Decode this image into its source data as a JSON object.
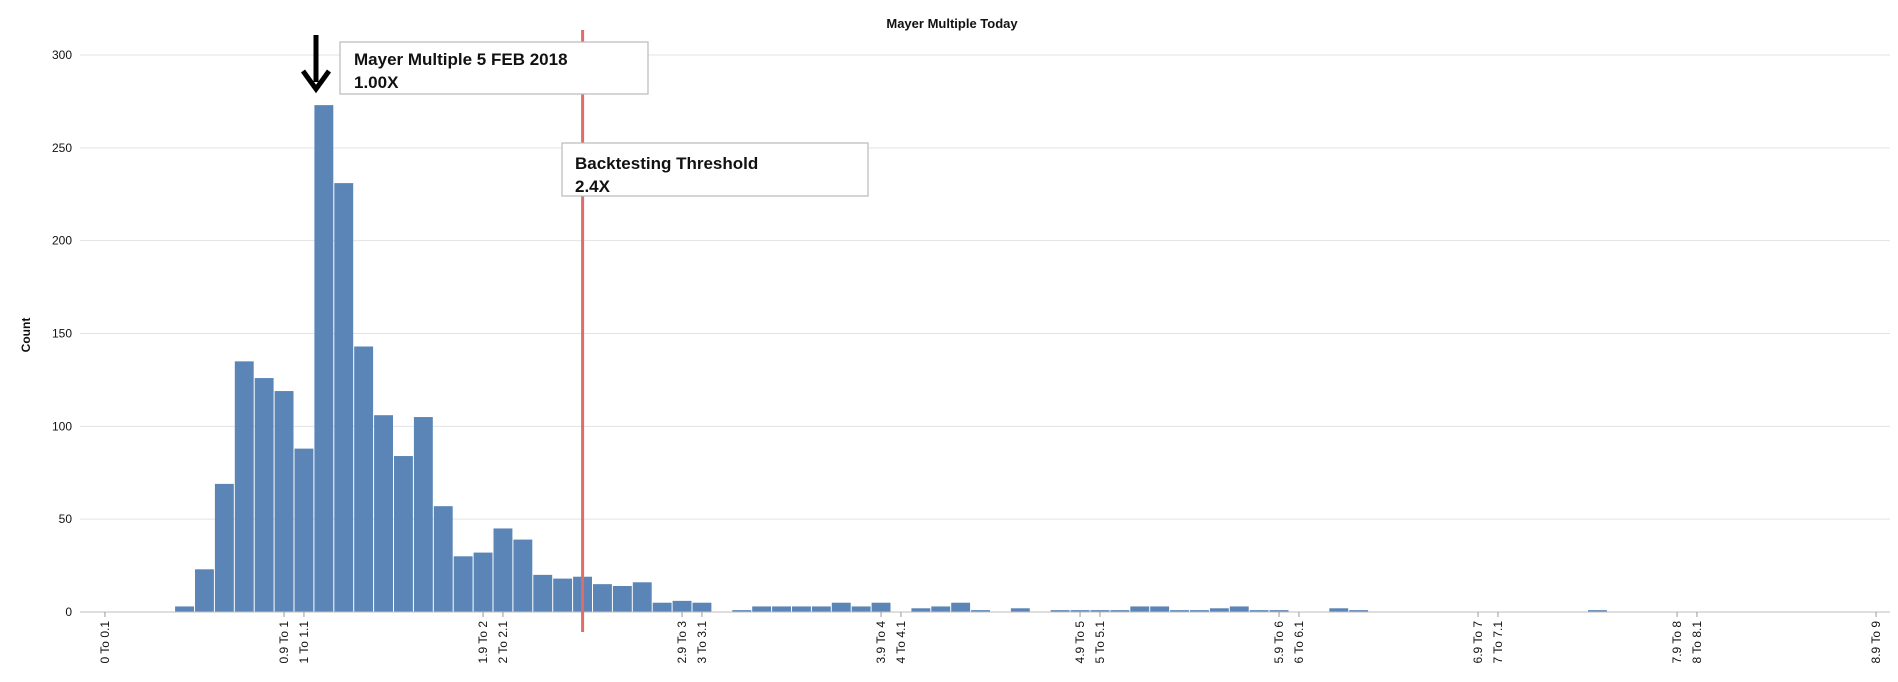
{
  "chart_data": {
    "type": "bar",
    "title": "Mayer Multiple Today",
    "xlabel": "",
    "ylabel": "Count",
    "ylim": [
      0,
      300
    ],
    "yticks": [
      "0",
      "50",
      "100",
      "150",
      "200",
      "250",
      "300"
    ],
    "grid": true,
    "bin_start": 0,
    "bin_width": 0.1,
    "x_tick_labels": [
      "0 To 0.1",
      "0.9 To 1",
      "1 To 1.1",
      "1.9 To 2",
      "2 To 2.1",
      "2.9 To 3",
      "3 To 3.1",
      "3.9 To 4",
      "4 To 4.1",
      "4.9 To 5",
      "5 To 5.1",
      "5.9 To 6",
      "6 To 6.1",
      "6.9 To 7",
      "7 To 7.1",
      "7.9 To 8",
      "8 To 8.1",
      "8.9 To 9"
    ],
    "series": [
      {
        "color": "#5a85b6",
        "values": [
          0,
          0,
          0,
          0,
          3,
          23,
          69,
          135,
          126,
          119,
          88,
          273,
          231,
          143,
          106,
          84,
          105,
          57,
          30,
          32,
          45,
          39,
          20,
          18,
          19,
          15,
          14,
          16,
          5,
          6,
          5,
          0,
          1,
          3,
          3,
          3,
          3,
          5,
          3,
          5,
          0,
          2,
          3,
          5,
          1,
          0,
          2,
          0,
          1,
          1,
          1,
          1,
          3,
          3,
          1,
          1,
          2,
          3,
          1,
          1,
          0,
          0,
          2,
          1,
          0,
          0,
          0,
          0,
          0,
          0,
          0,
          0,
          0,
          0,
          0,
          1,
          0,
          0,
          0,
          0,
          0,
          0,
          0,
          0,
          0,
          0,
          0,
          0,
          0,
          0,
          0,
          0,
          0,
          0,
          0,
          0,
          0,
          0,
          0,
          0
        ]
      }
    ],
    "threshold": {
      "x": 2.4,
      "color": "#e06b6b"
    },
    "annotations": [
      {
        "line1": "Mayer Multiple 5 FEB 2018",
        "line2": "1.00X",
        "arrow": true
      },
      {
        "line1": "Backtesting Threshold",
        "line2": "2.4X"
      }
    ]
  }
}
